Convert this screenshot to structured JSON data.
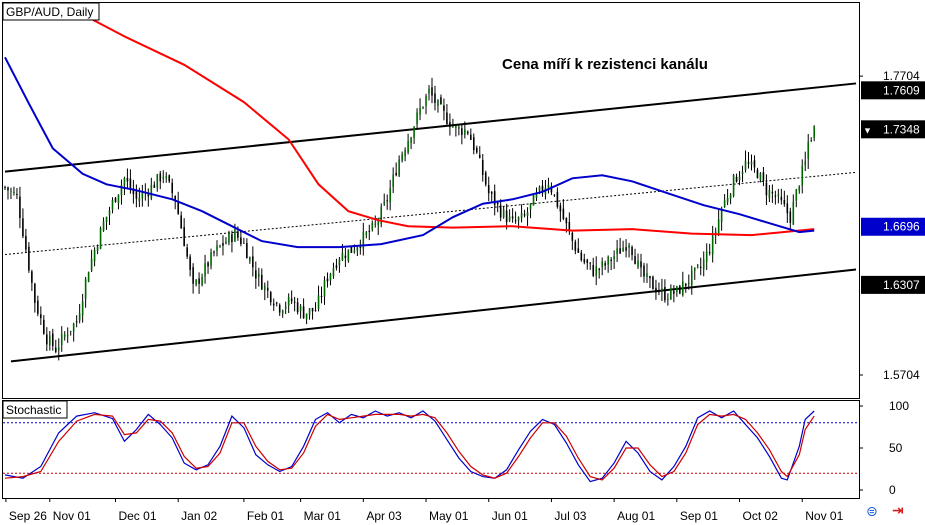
{
  "chart_data": [
    {
      "type": "candlestick",
      "title": "GBP/AUD, Daily",
      "annotation": "Cena míří k rezistenci kanálu",
      "ylim": [
        1.555,
        1.82
      ],
      "price_ticks": [
        {
          "value": 1.7704,
          "label": "1.7704"
        },
        {
          "value": 1.5704,
          "label": "1.5704"
        }
      ],
      "tagged_prices": [
        {
          "value": 1.7609,
          "label": "1.7609",
          "color": "#000000"
        },
        {
          "value": 1.7348,
          "label": "1.7348",
          "color": "#000000",
          "marker": "▼"
        },
        {
          "value": 1.6696,
          "label": "1.6696",
          "color": "#0000cc"
        },
        {
          "value": 1.6307,
          "label": "1.6307",
          "color": "#000000"
        }
      ],
      "x_labels": [
        "Sep 26",
        "Nov 01",
        "Dec 01",
        "Jan 02",
        "Feb 01",
        "Mar 01",
        "Apr 03",
        "May 01",
        "Jun 01",
        "Jul 03",
        "Aug 01",
        "Sep 01",
        "Oct 02",
        "Nov 01"
      ],
      "x_label_pos": [
        0.3,
        15,
        37,
        58,
        80,
        99,
        120,
        141,
        162,
        183,
        204,
        225,
        246,
        267
      ],
      "bars": 285,
      "last_bar": 271,
      "close_path": [
        [
          0,
          1.696
        ],
        [
          4,
          1.69
        ],
        [
          7,
          1.655
        ],
        [
          10,
          1.62
        ],
        [
          14,
          1.595
        ],
        [
          17,
          1.588
        ],
        [
          21,
          1.6
        ],
        [
          24,
          1.606
        ],
        [
          28,
          1.642
        ],
        [
          33,
          1.672
        ],
        [
          37,
          1.69
        ],
        [
          40,
          1.702
        ],
        [
          44,
          1.688
        ],
        [
          48,
          1.694
        ],
        [
          53,
          1.705
        ],
        [
          57,
          1.688
        ],
        [
          60,
          1.66
        ],
        [
          63,
          1.628
        ],
        [
          66,
          1.638
        ],
        [
          70,
          1.652
        ],
        [
          74,
          1.66
        ],
        [
          77,
          1.665
        ],
        [
          80,
          1.658
        ],
        [
          84,
          1.638
        ],
        [
          88,
          1.626
        ],
        [
          92,
          1.616
        ],
        [
          96,
          1.62
        ],
        [
          100,
          1.612
        ],
        [
          104,
          1.614
        ],
        [
          108,
          1.636
        ],
        [
          112,
          1.65
        ],
        [
          116,
          1.654
        ],
        [
          120,
          1.662
        ],
        [
          124,
          1.67
        ],
        [
          128,
          1.688
        ],
        [
          132,
          1.715
        ],
        [
          136,
          1.733
        ],
        [
          139,
          1.748
        ],
        [
          142,
          1.76
        ],
        [
          145,
          1.75
        ],
        [
          148,
          1.742
        ],
        [
          151,
          1.735
        ],
        [
          155,
          1.734
        ],
        [
          158,
          1.718
        ],
        [
          162,
          1.692
        ],
        [
          166,
          1.68
        ],
        [
          170,
          1.672
        ],
        [
          174,
          1.676
        ],
        [
          178,
          1.69
        ],
        [
          182,
          1.7
        ],
        [
          186,
          1.68
        ],
        [
          190,
          1.66
        ],
        [
          193,
          1.648
        ],
        [
          197,
          1.64
        ],
        [
          201,
          1.644
        ],
        [
          205,
          1.652
        ],
        [
          209,
          1.66
        ],
        [
          213,
          1.638
        ],
        [
          217,
          1.63
        ],
        [
          221,
          1.624
        ],
        [
          225,
          1.626
        ],
        [
          229,
          1.634
        ],
        [
          233,
          1.642
        ],
        [
          237,
          1.66
        ],
        [
          240,
          1.682
        ],
        [
          244,
          1.7
        ],
        [
          248,
          1.712
        ],
        [
          252,
          1.706
        ],
        [
          255,
          1.694
        ],
        [
          258,
          1.69
        ],
        [
          261,
          1.682
        ],
        [
          263,
          1.676
        ],
        [
          266,
          1.7
        ],
        [
          268,
          1.712
        ],
        [
          269,
          1.726
        ],
        [
          271,
          1.735
        ]
      ],
      "channel": {
        "upper": [
          [
            0,
            1.7065
          ],
          [
            285,
            1.7655
          ]
        ],
        "middle": [
          [
            0,
            1.651
          ],
          [
            285,
            1.706
          ]
        ],
        "lower": [
          [
            2,
            1.5795
          ],
          [
            285,
            1.641
          ]
        ]
      },
      "series": [
        {
          "color": "#ff0000",
          "points": [
            [
              20,
              1.818
            ],
            [
              40,
              1.797
            ],
            [
              60,
              1.778
            ],
            [
              80,
              1.753
            ],
            [
              95,
              1.728
            ],
            [
              105,
              1.698
            ],
            [
              115,
              1.68
            ],
            [
              125,
              1.674
            ],
            [
              135,
              1.67
            ],
            [
              150,
              1.669
            ],
            [
              170,
              1.67
            ],
            [
              190,
              1.667
            ],
            [
              210,
              1.668
            ],
            [
              230,
              1.665
            ],
            [
              250,
              1.664
            ],
            [
              271,
              1.668
            ]
          ]
        },
        {
          "color": "#0000cc",
          "points": [
            [
              0,
              1.783
            ],
            [
              8,
              1.752
            ],
            [
              16,
              1.722
            ],
            [
              26,
              1.705
            ],
            [
              34,
              1.698
            ],
            [
              44,
              1.694
            ],
            [
              56,
              1.688
            ],
            [
              66,
              1.68
            ],
            [
              76,
              1.67
            ],
            [
              86,
              1.66
            ],
            [
              98,
              1.656
            ],
            [
              112,
              1.656
            ],
            [
              126,
              1.658
            ],
            [
              140,
              1.664
            ],
            [
              150,
              1.676
            ],
            [
              160,
              1.685
            ],
            [
              170,
              1.688
            ],
            [
              180,
              1.693
            ],
            [
              190,
              1.702
            ],
            [
              200,
              1.704
            ],
            [
              210,
              1.7
            ],
            [
              222,
              1.692
            ],
            [
              234,
              1.684
            ],
            [
              246,
              1.678
            ],
            [
              256,
              1.672
            ],
            [
              266,
              1.666
            ],
            [
              271,
              1.667
            ]
          ]
        }
      ]
    },
    {
      "type": "line",
      "title": "Stochastic",
      "ylim": [
        0,
        100
      ],
      "yticks": [
        100,
        50,
        0
      ],
      "levels": [
        {
          "value": 80,
          "color": "#0000cc"
        },
        {
          "value": 20,
          "color": "#cc0000"
        }
      ],
      "series": [
        {
          "color": "#0000cc",
          "points": [
            [
              0,
              18
            ],
            [
              6,
              14
            ],
            [
              12,
              28
            ],
            [
              18,
              68
            ],
            [
              24,
              88
            ],
            [
              30,
              92
            ],
            [
              36,
              85
            ],
            [
              40,
              58
            ],
            [
              44,
              72
            ],
            [
              48,
              90
            ],
            [
              52,
              78
            ],
            [
              56,
              62
            ],
            [
              60,
              32
            ],
            [
              64,
              24
            ],
            [
              68,
              30
            ],
            [
              72,
              52
            ],
            [
              76,
              88
            ],
            [
              80,
              74
            ],
            [
              84,
              42
            ],
            [
              88,
              30
            ],
            [
              92,
              22
            ],
            [
              96,
              28
            ],
            [
              100,
              52
            ],
            [
              104,
              84
            ],
            [
              108,
              92
            ],
            [
              112,
              80
            ],
            [
              116,
              90
            ],
            [
              120,
              86
            ],
            [
              124,
              94
            ],
            [
              128,
              88
            ],
            [
              132,
              92
            ],
            [
              136,
              86
            ],
            [
              140,
              94
            ],
            [
              144,
              82
            ],
            [
              148,
              60
            ],
            [
              152,
              38
            ],
            [
              156,
              22
            ],
            [
              160,
              16
            ],
            [
              164,
              14
            ],
            [
              168,
              24
            ],
            [
              172,
              48
            ],
            [
              176,
              70
            ],
            [
              180,
              84
            ],
            [
              184,
              78
            ],
            [
              188,
              56
            ],
            [
              192,
              30
            ],
            [
              196,
              10
            ],
            [
              200,
              14
            ],
            [
              204,
              32
            ],
            [
              208,
              58
            ],
            [
              212,
              44
            ],
            [
              216,
              22
            ],
            [
              220,
              12
            ],
            [
              224,
              28
            ],
            [
              228,
              52
            ],
            [
              232,
              86
            ],
            [
              236,
              94
            ],
            [
              240,
              86
            ],
            [
              244,
              94
            ],
            [
              248,
              78
            ],
            [
              252,
              62
            ],
            [
              256,
              40
            ],
            [
              260,
              14
            ],
            [
              262,
              12
            ],
            [
              266,
              52
            ],
            [
              268,
              84
            ],
            [
              271,
              94
            ]
          ]
        },
        {
          "color": "#cc0000",
          "points": [
            [
              0,
              14
            ],
            [
              6,
              16
            ],
            [
              12,
              22
            ],
            [
              18,
              58
            ],
            [
              24,
              82
            ],
            [
              30,
              90
            ],
            [
              36,
              88
            ],
            [
              40,
              66
            ],
            [
              44,
              68
            ],
            [
              48,
              84
            ],
            [
              52,
              82
            ],
            [
              56,
              68
            ],
            [
              60,
              40
            ],
            [
              64,
              26
            ],
            [
              68,
              28
            ],
            [
              72,
              44
            ],
            [
              76,
              80
            ],
            [
              80,
              80
            ],
            [
              84,
              52
            ],
            [
              88,
              34
            ],
            [
              92,
              24
            ],
            [
              96,
              26
            ],
            [
              100,
              44
            ],
            [
              104,
              76
            ],
            [
              108,
              90
            ],
            [
              112,
              84
            ],
            [
              116,
              86
            ],
            [
              120,
              88
            ],
            [
              124,
              90
            ],
            [
              128,
              90
            ],
            [
              132,
              90
            ],
            [
              136,
              88
            ],
            [
              140,
              90
            ],
            [
              144,
              86
            ],
            [
              148,
              68
            ],
            [
              152,
              46
            ],
            [
              156,
              28
            ],
            [
              160,
              18
            ],
            [
              164,
              14
            ],
            [
              168,
              20
            ],
            [
              172,
              40
            ],
            [
              176,
              62
            ],
            [
              180,
              80
            ],
            [
              184,
              80
            ],
            [
              188,
              64
            ],
            [
              192,
              38
            ],
            [
              196,
              16
            ],
            [
              200,
              12
            ],
            [
              204,
              26
            ],
            [
              208,
              50
            ],
            [
              212,
              50
            ],
            [
              216,
              30
            ],
            [
              220,
              16
            ],
            [
              224,
              22
            ],
            [
              228,
              44
            ],
            [
              232,
              78
            ],
            [
              236,
              90
            ],
            [
              240,
              88
            ],
            [
              244,
              90
            ],
            [
              248,
              84
            ],
            [
              252,
              68
            ],
            [
              256,
              48
            ],
            [
              260,
              22
            ],
            [
              262,
              16
            ],
            [
              266,
              42
            ],
            [
              268,
              72
            ],
            [
              271,
              88
            ]
          ]
        }
      ]
    }
  ],
  "colors": {
    "background": "#ffffff",
    "bull": "#006600",
    "bear": "#000000",
    "grid": "#000000"
  },
  "icons": [
    "link-icon",
    "arrow-right-icon"
  ]
}
